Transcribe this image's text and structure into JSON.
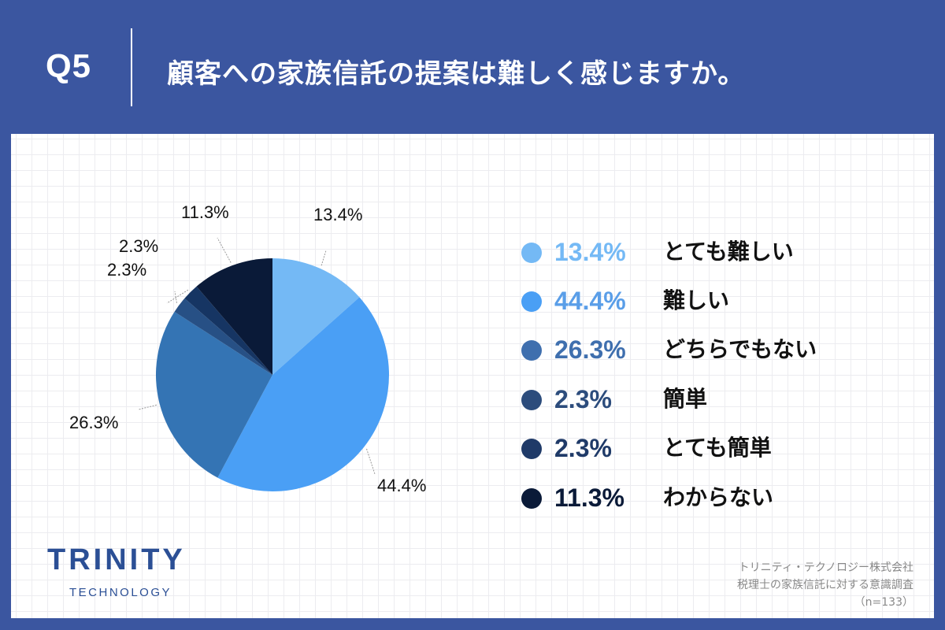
{
  "header": {
    "question_number": "Q5",
    "title": "顧客への家族信託の提案は難しく感じますか。"
  },
  "chart_data": {
    "type": "pie",
    "title": "顧客への家族信託の提案は難しく感じますか。",
    "categories": [
      "とても難しい",
      "難しい",
      "どちらでもない",
      "簡単",
      "とても簡単",
      "わからない"
    ],
    "values": [
      13.4,
      44.4,
      26.3,
      2.3,
      2.3,
      11.3
    ],
    "labels": [
      "13.4%",
      "44.4%",
      "26.3%",
      "2.3%",
      "2.3%",
      "11.3%"
    ],
    "colors": [
      "#74b9f5",
      "#4a9ff5",
      "#3474b4",
      "#275085",
      "#163563",
      "#0a1a38"
    ],
    "start_angle": "12 o'clock, clockwise",
    "legend_position": "right",
    "sample_size": "n=133"
  },
  "pie_labels": [
    {
      "text": "13.4%"
    },
    {
      "text": "44.4%"
    },
    {
      "text": "26.3%"
    },
    {
      "text": "2.3%"
    },
    {
      "text": "2.3%"
    },
    {
      "text": "11.3%"
    }
  ],
  "legend": {
    "items": [
      {
        "pct": "13.4%",
        "label": "とても難しい",
        "color": "#74b9f5",
        "text_color": "#74b9f5"
      },
      {
        "pct": "44.4%",
        "label": "難しい",
        "color": "#4a9ff5",
        "text_color": "#5a9ee8"
      },
      {
        "pct": "26.3%",
        "label": "どちらでもない",
        "color": "#3f6fae",
        "text_color": "#3f6fae"
      },
      {
        "pct": "2.3%",
        "label": "簡単",
        "color": "#2c4c7c",
        "text_color": "#2c4c7c"
      },
      {
        "pct": "2.3%",
        "label": "とても簡単",
        "color": "#1f3a68",
        "text_color": "#1f3a68"
      },
      {
        "pct": "11.3%",
        "label": "わからない",
        "color": "#0a1a38",
        "text_color": "#0a1a38"
      }
    ]
  },
  "logo": {
    "main": "TRINITY",
    "sub": "TECHNOLOGY"
  },
  "source": {
    "line1": "トリニティ・テクノロジー株式会社",
    "line2": "税理士の家族信託に対する意識調査",
    "line3": "（n=133）"
  }
}
